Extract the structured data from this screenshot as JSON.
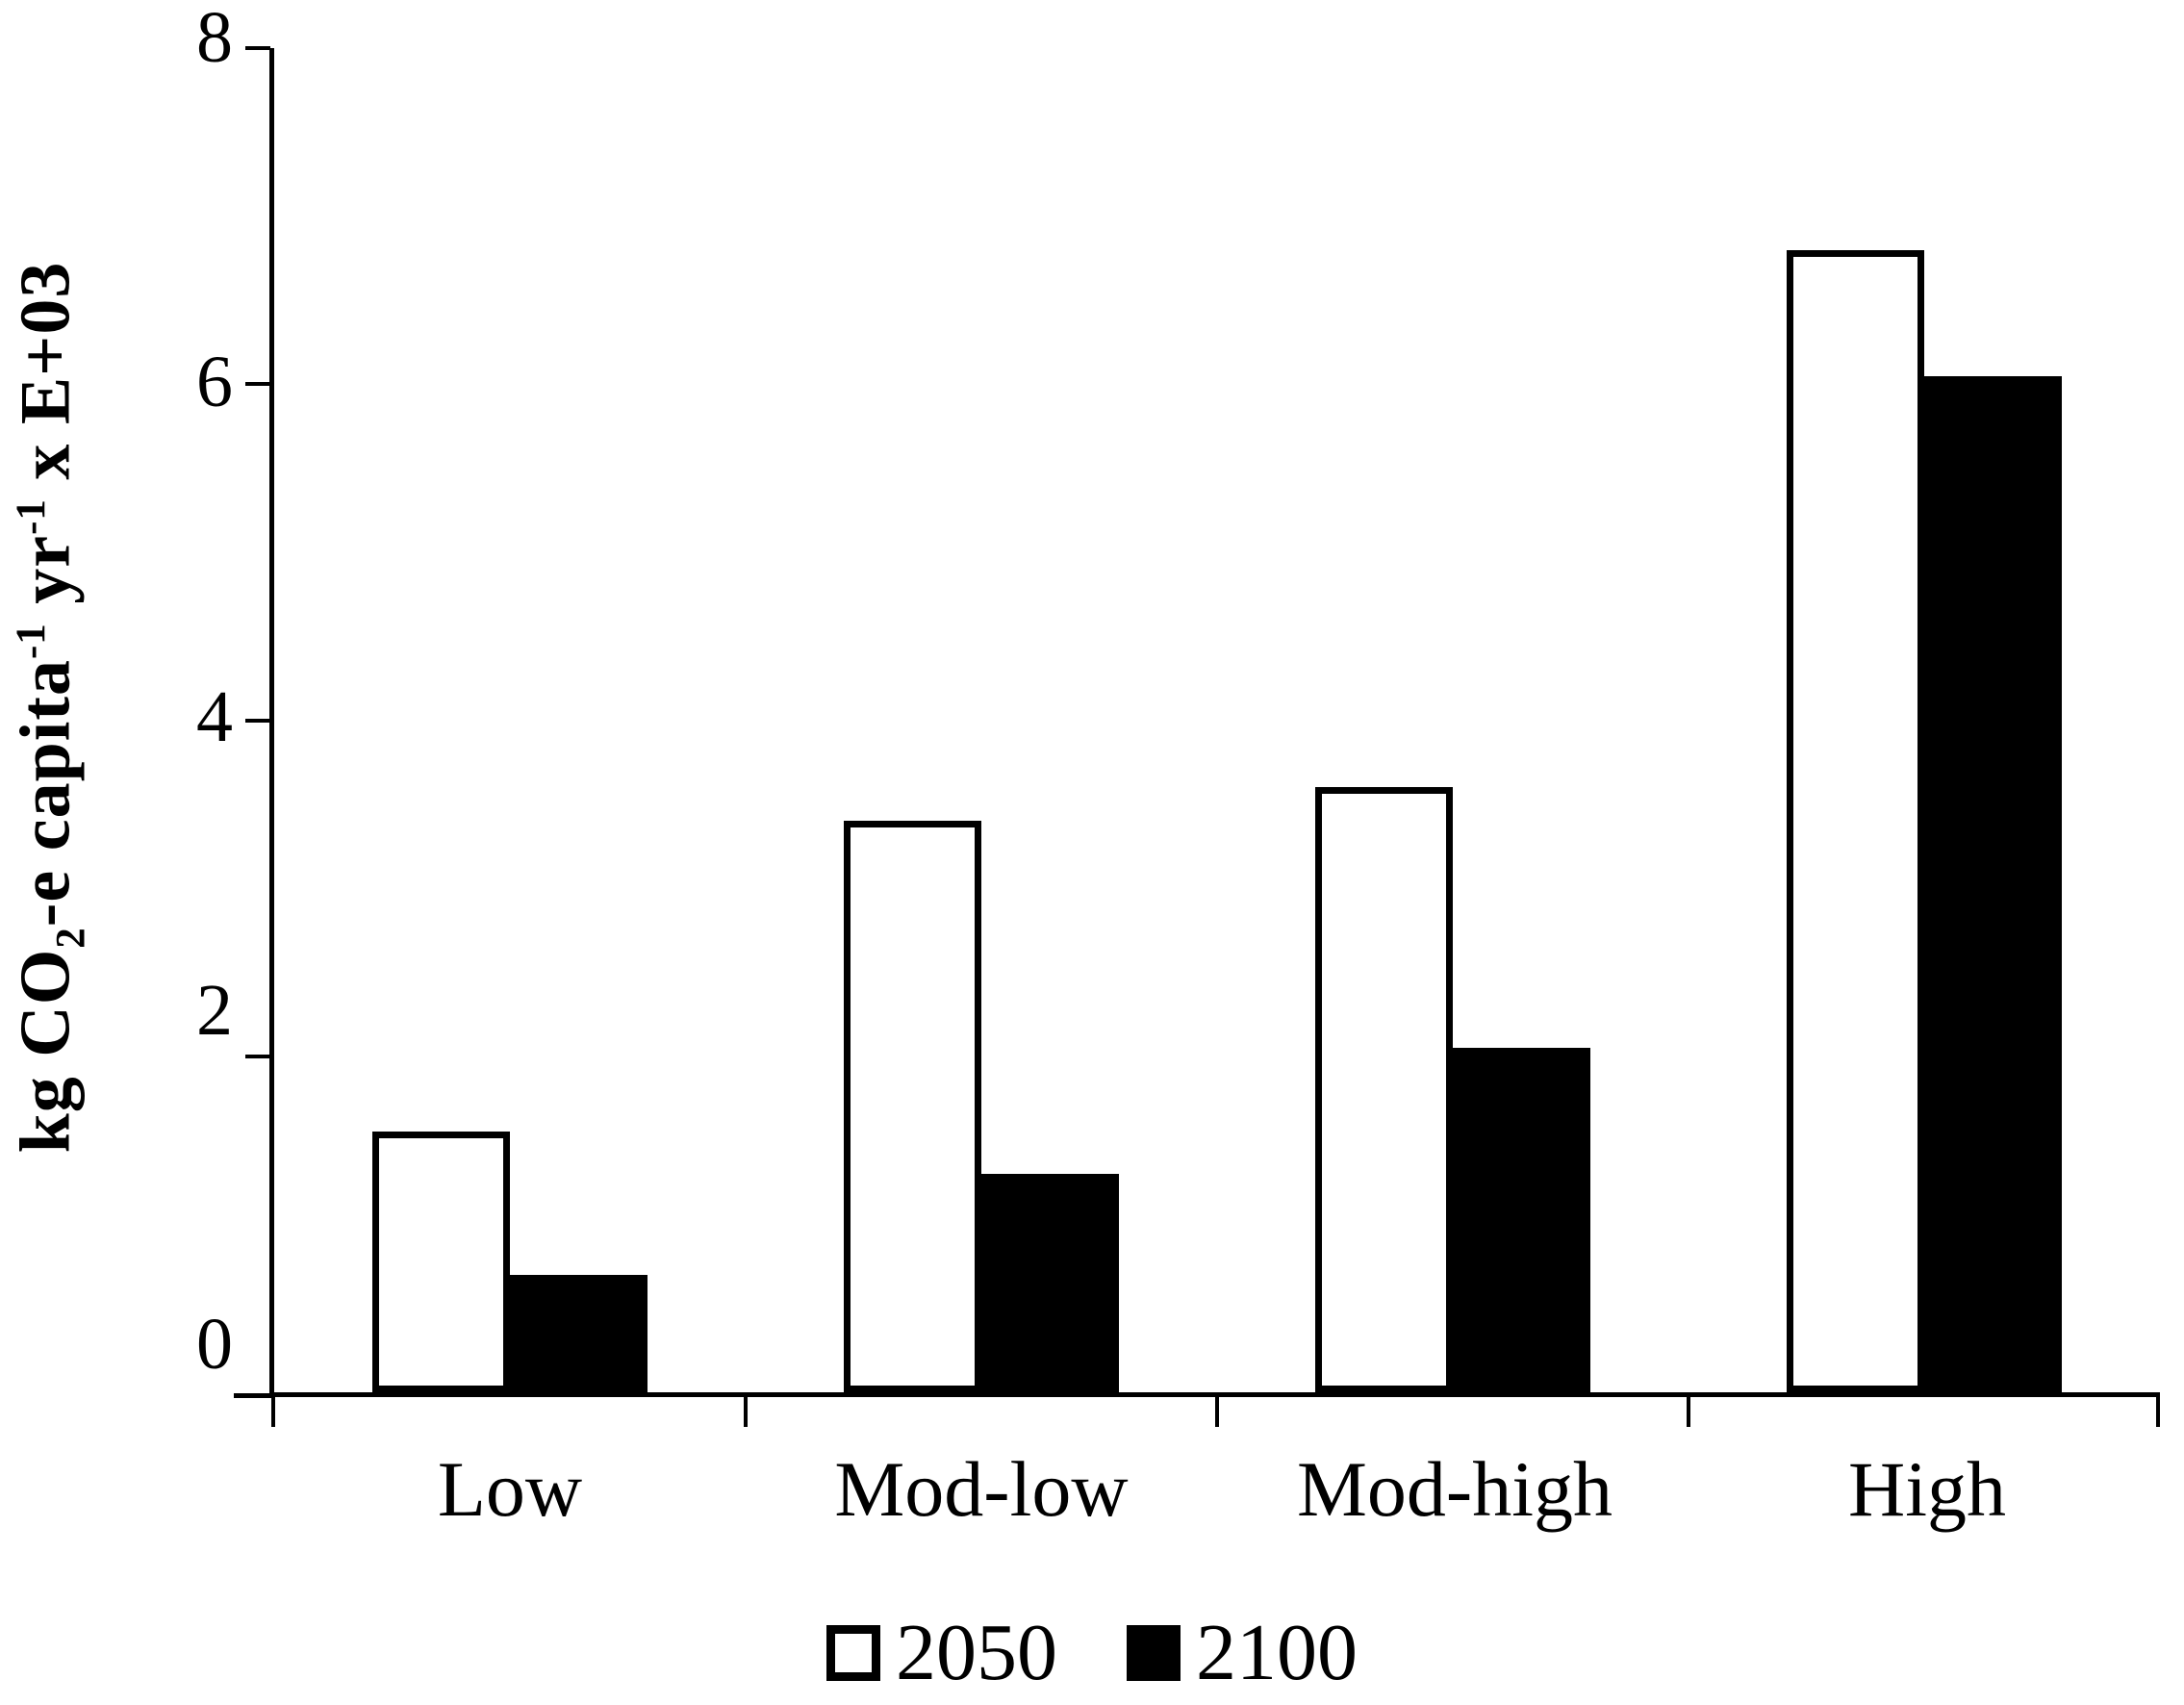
{
  "figure": {
    "background": "#ffffff",
    "ink_color": "#000000"
  },
  "chart_data": {
    "type": "bar",
    "title": "",
    "xlabel": "",
    "ylabel": "kg CO2-e capita-1 yr-1 x E+03",
    "ylabel_parts": {
      "p1": "kg CO",
      "p1sub": "2",
      "p2": "-e capita",
      "p2sup": "-1",
      "p3": " yr",
      "p3sup": "-1",
      "p4": " x E+03"
    },
    "categories": [
      "Low",
      "Mod-low",
      "Mod-high",
      "High"
    ],
    "series": [
      {
        "name": "2050",
        "values": [
          1.55,
          3.4,
          3.6,
          6.8
        ],
        "fill": "#ffffff",
        "outline": "#000000"
      },
      {
        "name": "2100",
        "values": [
          0.7,
          1.3,
          2.05,
          6.05
        ],
        "fill": "#000000",
        "outline": "#000000"
      }
    ],
    "ylim": [
      0,
      8
    ],
    "yticks": [
      "0",
      "2",
      "4",
      "6",
      "8"
    ],
    "grid": false,
    "legend_position": "bottom"
  }
}
